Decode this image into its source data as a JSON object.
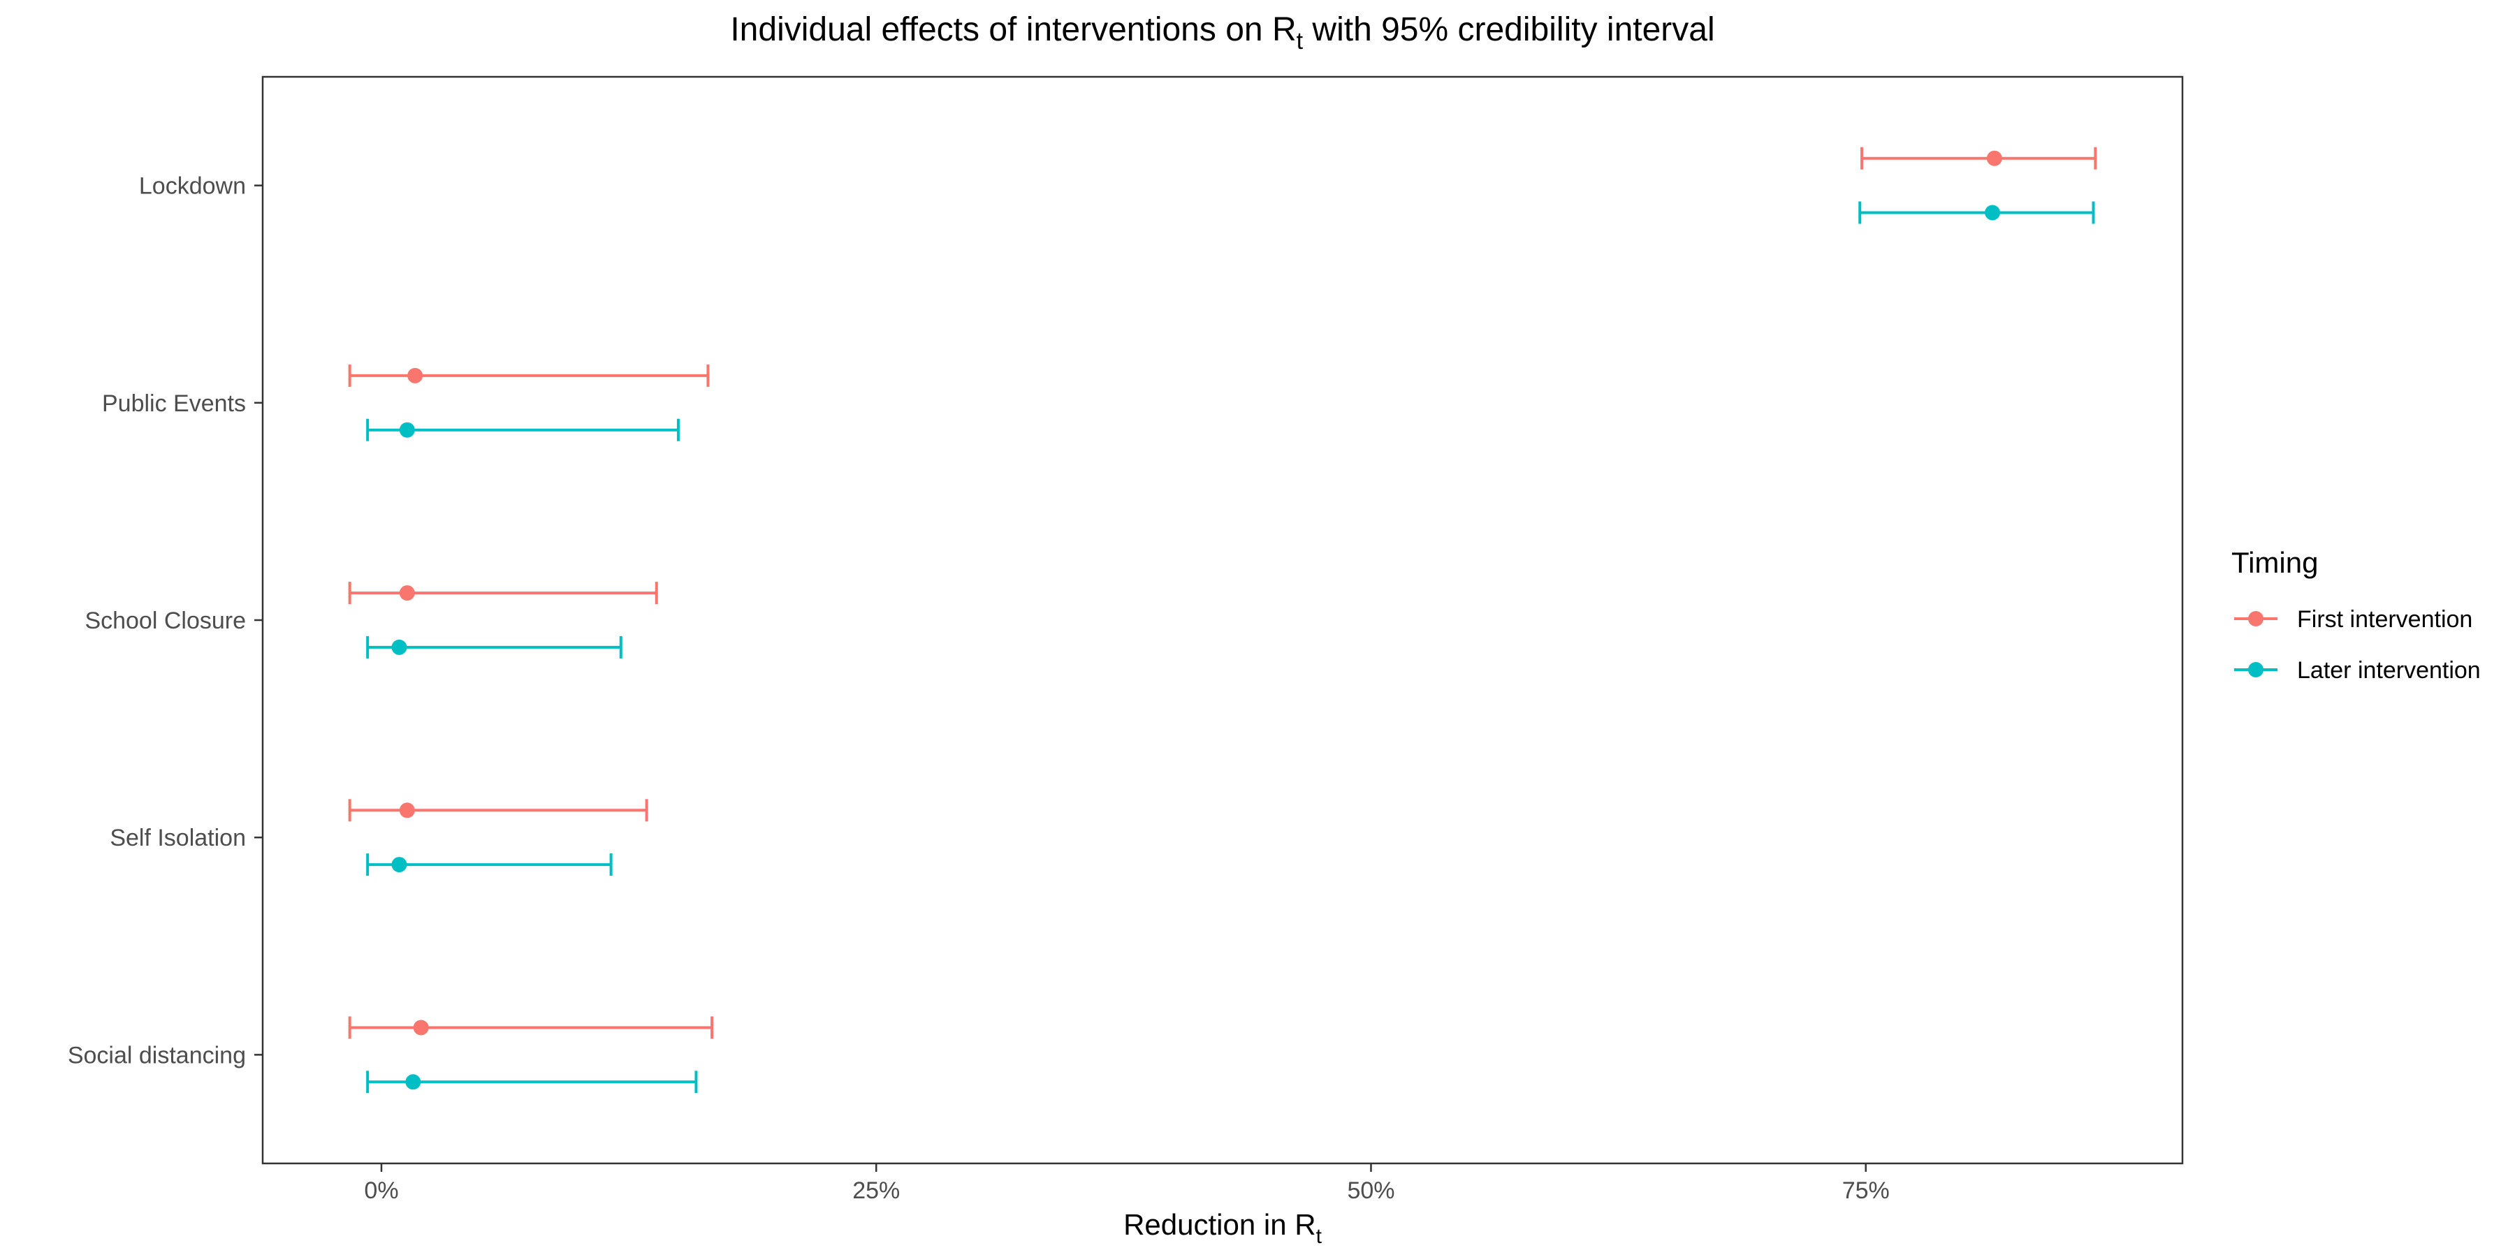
{
  "chart_data": {
    "type": "errorbar",
    "title_main": "Individual effects of interventions on R",
    "title_sub": "t",
    "title_rest": " with 95% credibility interval",
    "xlabel_main": "Reduction in R",
    "xlabel_sub": "t",
    "x_ticks": [
      0,
      25,
      50,
      75
    ],
    "x_tick_labels": [
      "0%",
      "25%",
      "50%",
      "75%"
    ],
    "xlim": [
      -6,
      91
    ],
    "categories": [
      "Lockdown",
      "Public Events",
      "School Closure",
      "Self Isolation",
      "Social distancing"
    ],
    "legend": {
      "title": "Timing",
      "position": "right"
    },
    "series": [
      {
        "name": "First intervention",
        "color": "#F8766D",
        "points": [
          {
            "category": "Lockdown",
            "estimate": 81.5,
            "lower": 74.8,
            "upper": 86.6
          },
          {
            "category": "Public Events",
            "estimate": 1.7,
            "lower": -1.6,
            "upper": 16.5
          },
          {
            "category": "School Closure",
            "estimate": 1.3,
            "lower": -1.6,
            "upper": 13.9
          },
          {
            "category": "Self Isolation",
            "estimate": 1.3,
            "lower": -1.6,
            "upper": 13.4
          },
          {
            "category": "Social distancing",
            "estimate": 2.0,
            "lower": -1.6,
            "upper": 16.7
          }
        ]
      },
      {
        "name": "Later intervention",
        "color": "#00BFC4",
        "points": [
          {
            "category": "Lockdown",
            "estimate": 81.4,
            "lower": 74.7,
            "upper": 86.5
          },
          {
            "category": "Public Events",
            "estimate": 1.3,
            "lower": -0.7,
            "upper": 15.0
          },
          {
            "category": "School Closure",
            "estimate": 0.9,
            "lower": -0.7,
            "upper": 12.1
          },
          {
            "category": "Self Isolation",
            "estimate": 0.9,
            "lower": -0.7,
            "upper": 11.6
          },
          {
            "category": "Social distancing",
            "estimate": 1.6,
            "lower": -0.7,
            "upper": 15.9
          }
        ]
      }
    ]
  }
}
